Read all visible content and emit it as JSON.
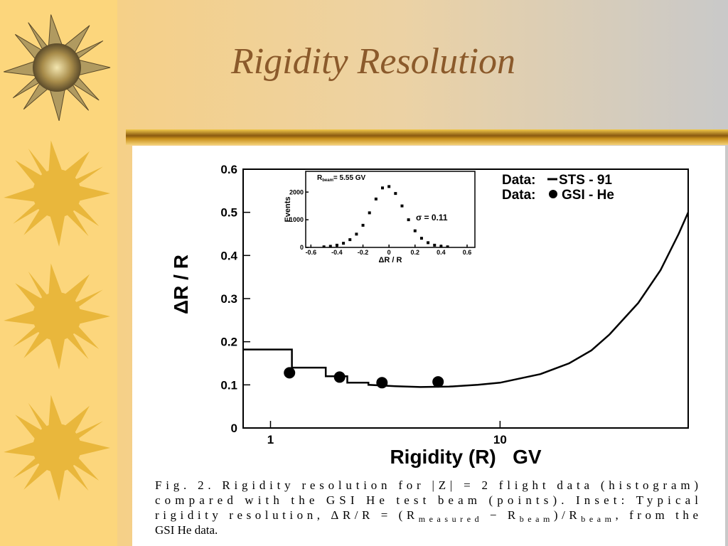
{
  "slide": {
    "title": "Rigidity Resolution",
    "caption": [
      "Fig. 2. Rigidity resolution for |Z| = 2 flight data (histogram)",
      "compared with the GSI He test beam (points). Inset: Typical",
      [
        "rigidity resolution, ΔR/R = (R",
        "measured",
        " − R",
        "beam",
        ")/R",
        "beam",
        ", from the"
      ],
      "GSI He data."
    ]
  },
  "chart_data": [
    {
      "type": "line",
      "xlabel": "Rigidity (R)   GV",
      "ylabel": "ΔR / R",
      "xscale": "log",
      "xlim": [
        0.76,
        66
      ],
      "ylim": [
        0,
        0.6
      ],
      "xticks": [
        1,
        10
      ],
      "yticks": [
        0,
        0.1,
        0.2,
        0.3,
        0.4,
        0.5,
        0.6
      ],
      "legend_prefix": "Data:",
      "legend": "upper right",
      "series": [
        {
          "name": "STS - 91",
          "style": "step-line",
          "color": "#000000",
          "x": [
            0.76,
            1.24,
            1.24,
            1.74,
            1.74,
            2.16,
            2.16,
            2.67,
            2.67,
            3.5,
            4.5,
            6,
            8,
            10,
            15,
            20,
            25,
            30,
            40,
            50,
            60,
            66
          ],
          "values": [
            0.182,
            0.182,
            0.14,
            0.14,
            0.12,
            0.12,
            0.105,
            0.105,
            0.1,
            0.097,
            0.095,
            0.096,
            0.1,
            0.105,
            0.125,
            0.15,
            0.18,
            0.217,
            0.29,
            0.366,
            0.45,
            0.5
          ]
        },
        {
          "name": "GSI - He",
          "style": "points",
          "color": "#000000",
          "x": [
            1.21,
            2.0,
            3.06,
            5.37
          ],
          "values": [
            0.128,
            0.118,
            0.105,
            0.107
          ]
        }
      ]
    },
    {
      "type": "scatter",
      "xlabel": "ΔR / R",
      "ylabel": "Events",
      "xlim": [
        -0.64,
        0.66
      ],
      "ylim": [
        0,
        2750
      ],
      "xticks": [
        -0.6,
        -0.4,
        -0.2,
        0,
        0.2,
        0.4,
        0.6
      ],
      "yticks": [
        0,
        1000,
        2000
      ],
      "annotations": [
        [
          "R",
          "beam",
          "= 5.55 GV"
        ],
        "σ = 0.11"
      ],
      "series": [
        {
          "color": "#000000",
          "x": [
            -0.5,
            -0.45,
            -0.4,
            -0.35,
            -0.3,
            -0.25,
            -0.2,
            -0.15,
            -0.1,
            -0.05,
            0,
            0.05,
            0.1,
            0.15,
            0.2,
            0.25,
            0.3,
            0.35,
            0.4,
            0.45
          ],
          "values": [
            20,
            40,
            80,
            150,
            280,
            480,
            800,
            1250,
            1750,
            2150,
            2200,
            1950,
            1500,
            1000,
            600,
            330,
            170,
            80,
            40,
            20
          ]
        }
      ]
    }
  ]
}
